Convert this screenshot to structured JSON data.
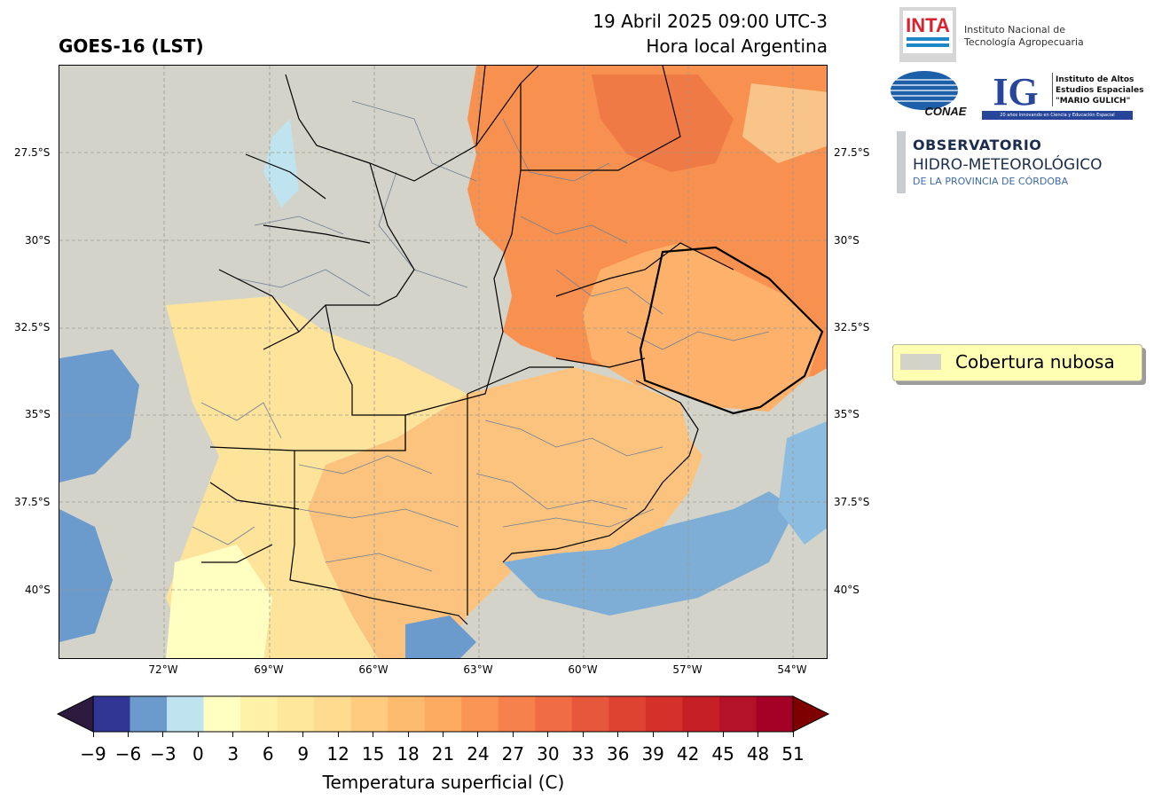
{
  "header": {
    "product_title": "GOES-16 (LST)",
    "datetime": "19 Abril 2025 09:00 UTC-3",
    "local_time_note": "Hora local Argentina"
  },
  "map": {
    "latitude_labels": [
      "27.5°S",
      "30°S",
      "32.5°S",
      "35°S",
      "37.5°S",
      "40°S"
    ],
    "longitude_labels": [
      "72°W",
      "69°W",
      "66°W",
      "63°W",
      "60°W",
      "57°W",
      "54°W"
    ],
    "cloud_color": "#d4d3c9",
    "grid_line_color": "#9a9a90",
    "boundary_color": "#000000",
    "department_color": "#6f7f96"
  },
  "legend": {
    "label": "Cobertura nubosa",
    "swatch_color": "#d4d3c9"
  },
  "colorbar": {
    "label": "Temperatura superficial (C)",
    "ticks": [
      "−9",
      "−6",
      "−3",
      "0",
      "3",
      "6",
      "9",
      "12",
      "15",
      "18",
      "21",
      "24",
      "27",
      "30",
      "33",
      "36",
      "39",
      "42",
      "45",
      "48",
      "51"
    ],
    "under_color": "#2d1a3e",
    "over_color": "#7f0000",
    "colors": [
      "#313695",
      "#6a9bcc",
      "#bfe3ef",
      "#ffffc2",
      "#fff2a8",
      "#fee69a",
      "#fedb8e",
      "#fdcc7f",
      "#fdbb6e",
      "#fcaa60",
      "#fb9555",
      "#f7814c",
      "#f06c44",
      "#e7573c",
      "#de4332",
      "#d5302a",
      "#c61f26",
      "#b31228",
      "#a50026"
    ]
  },
  "logos": {
    "inta": {
      "mark": "INTA",
      "name_line1": "Instituto Nacional de",
      "name_line2": "Tecnología Agropecuaria"
    },
    "conae": {
      "mark": "CONAE"
    },
    "ig": {
      "mark": "IG",
      "name_line1": "Instituto de Altos",
      "name_line2": "Estudios Espaciales",
      "name_line3": "\"MARIO GULICH\"",
      "caption": "20 años innovando en Ciencia y Educación Espacial"
    },
    "observatorio": {
      "title": "OBSERVATORIO",
      "subtitle": "HIDRO-METEOROLÓGICO",
      "subtitle2": "DE LA PROVINCIA DE CÓRDOBA"
    }
  }
}
